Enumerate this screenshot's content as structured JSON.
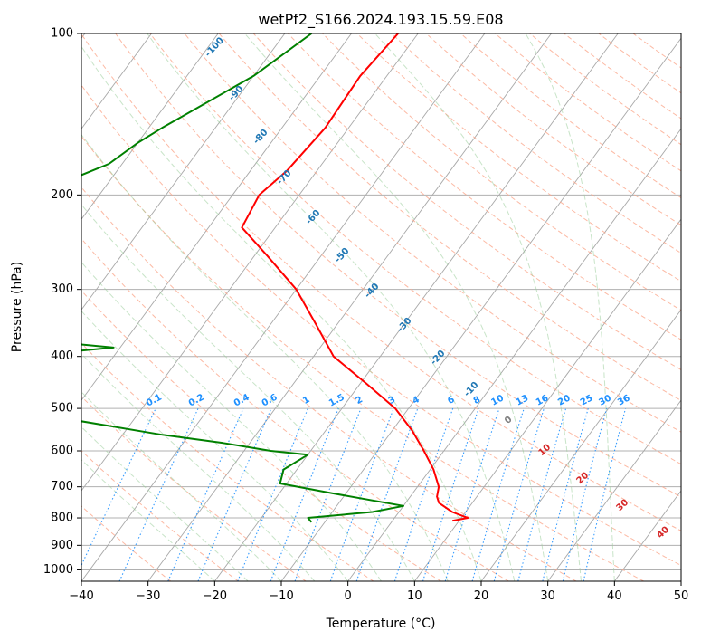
{
  "chart_data": {
    "type": "line",
    "title": "wetPf2_S166.2024.193.15.59.E08",
    "xlabel": "Temperature (°C)",
    "ylabel": "Pressure (hPa)",
    "xlim": [
      -40,
      50
    ],
    "ylim": [
      1050,
      100
    ],
    "y_scale": "log",
    "grid": true,
    "x_ticks": [
      -40,
      -30,
      -20,
      -10,
      0,
      10,
      20,
      30,
      40,
      50
    ],
    "y_ticks": [
      100,
      200,
      300,
      400,
      500,
      600,
      700,
      800,
      900,
      1000
    ],
    "series": [
      {
        "role": "temperature",
        "color": "#ff0000",
        "points": [
          [
            -53.0,
            100
          ],
          [
            -54.0,
            120
          ],
          [
            -53.5,
            150
          ],
          [
            -54.5,
            180
          ],
          [
            -56.0,
            200
          ],
          [
            -55.0,
            230
          ],
          [
            -48.0,
            260
          ],
          [
            -40.0,
            300
          ],
          [
            -33.0,
            350
          ],
          [
            -27.0,
            400
          ],
          [
            -19.0,
            450
          ],
          [
            -12.0,
            500
          ],
          [
            -7.0,
            550
          ],
          [
            -3.0,
            600
          ],
          [
            0.5,
            650
          ],
          [
            3.2,
            700
          ],
          [
            4.0,
            730
          ],
          [
            5.0,
            750
          ],
          [
            8.0,
            780
          ],
          [
            11.0,
            800
          ],
          [
            9.0,
            810
          ]
        ]
      },
      {
        "role": "dewpoint",
        "color": "#008000",
        "points": [
          [
            -66.0,
            100
          ],
          [
            -70.0,
            120
          ],
          [
            -78.0,
            150
          ],
          [
            -80.0,
            160
          ],
          [
            -82.0,
            175
          ],
          [
            -90.0,
            200
          ],
          [
            -96.0,
            220
          ],
          [
            -100.0,
            230
          ],
          [
            -103.0,
            260
          ],
          [
            -82.0,
            365
          ],
          [
            -61.0,
            385
          ],
          [
            -83.0,
            410
          ],
          [
            -80.0,
            450
          ],
          [
            -60.0,
            490
          ],
          [
            -66.0,
            510
          ],
          [
            -44.0,
            560
          ],
          [
            -34.0,
            580
          ],
          [
            -26.0,
            600
          ],
          [
            -20.0,
            610
          ],
          [
            -22.0,
            650
          ],
          [
            -21.0,
            690
          ],
          [
            -12.0,
            720
          ],
          [
            0.0,
            760
          ],
          [
            -4.0,
            780
          ],
          [
            -13.0,
            800
          ],
          [
            -12.0,
            815
          ]
        ]
      }
    ],
    "dry_adiabat_labels": [
      "-100",
      "-90",
      "-80",
      "-70",
      "-60",
      "-50",
      "-40",
      "-30",
      "-20",
      "-10"
    ],
    "mixing_ratio_labels": [
      "0.1",
      "0.2",
      "0.4",
      "0.6",
      "1",
      "1.5",
      "2",
      "3",
      "4",
      "6",
      "8",
      "10",
      "13",
      "16",
      "20",
      "25",
      "30",
      "36"
    ],
    "moist_adiabat_labels": [
      "0",
      "10",
      "20",
      "30",
      "40"
    ]
  },
  "colors": {
    "temperature": "#ff0000",
    "dewpoint": "#008000",
    "dry_adiabat_label": "#1f77b4",
    "mixing_ratio": "#1e90ff",
    "moist_adiabat_label": "#d62728",
    "zero_label": "#808080"
  }
}
